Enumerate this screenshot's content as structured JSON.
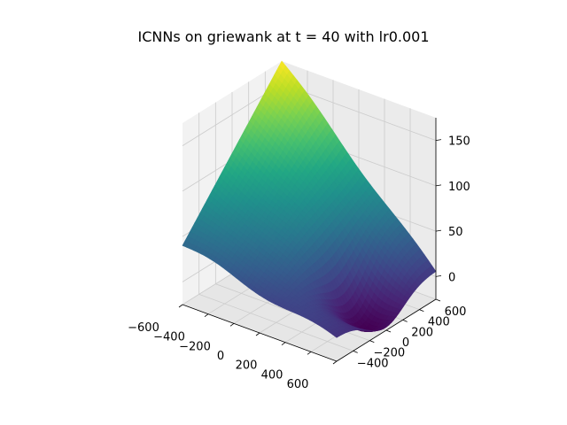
{
  "chart_data": {
    "type": "surface",
    "title": "ICNNs on griewank at t = 40 with lr0.001",
    "xlabel": "",
    "ylabel": "",
    "zlabel": "",
    "xlim": [
      -600,
      600
    ],
    "ylim": [
      -600,
      600
    ],
    "zlim": [
      -25,
      175
    ],
    "x_ticks": [
      -600,
      -400,
      -200,
      0,
      200,
      400,
      600
    ],
    "y_ticks": [
      -400,
      -200,
      0,
      200,
      400,
      600
    ],
    "z_ticks": [
      0,
      50,
      100,
      150
    ],
    "x_tick_labels": [
      "−600",
      "−400",
      "−200",
      "0",
      "200",
      "400",
      "600"
    ],
    "y_tick_labels": [
      "−400",
      "−200",
      "0",
      "200",
      "400",
      "600"
    ],
    "z_tick_labels": [
      "0",
      "50",
      "100",
      "150"
    ],
    "colormap": "viridis",
    "grid": true,
    "surface_corners": [
      {
        "x": -600,
        "y": 600,
        "z": 175
      },
      {
        "x": 600,
        "y": 600,
        "z": 5
      },
      {
        "x": -600,
        "y": -600,
        "z": 40
      },
      {
        "x": 600,
        "y": -600,
        "z": 0
      }
    ],
    "surface_min": {
      "x": 400,
      "y": 0,
      "z": -35
    }
  }
}
